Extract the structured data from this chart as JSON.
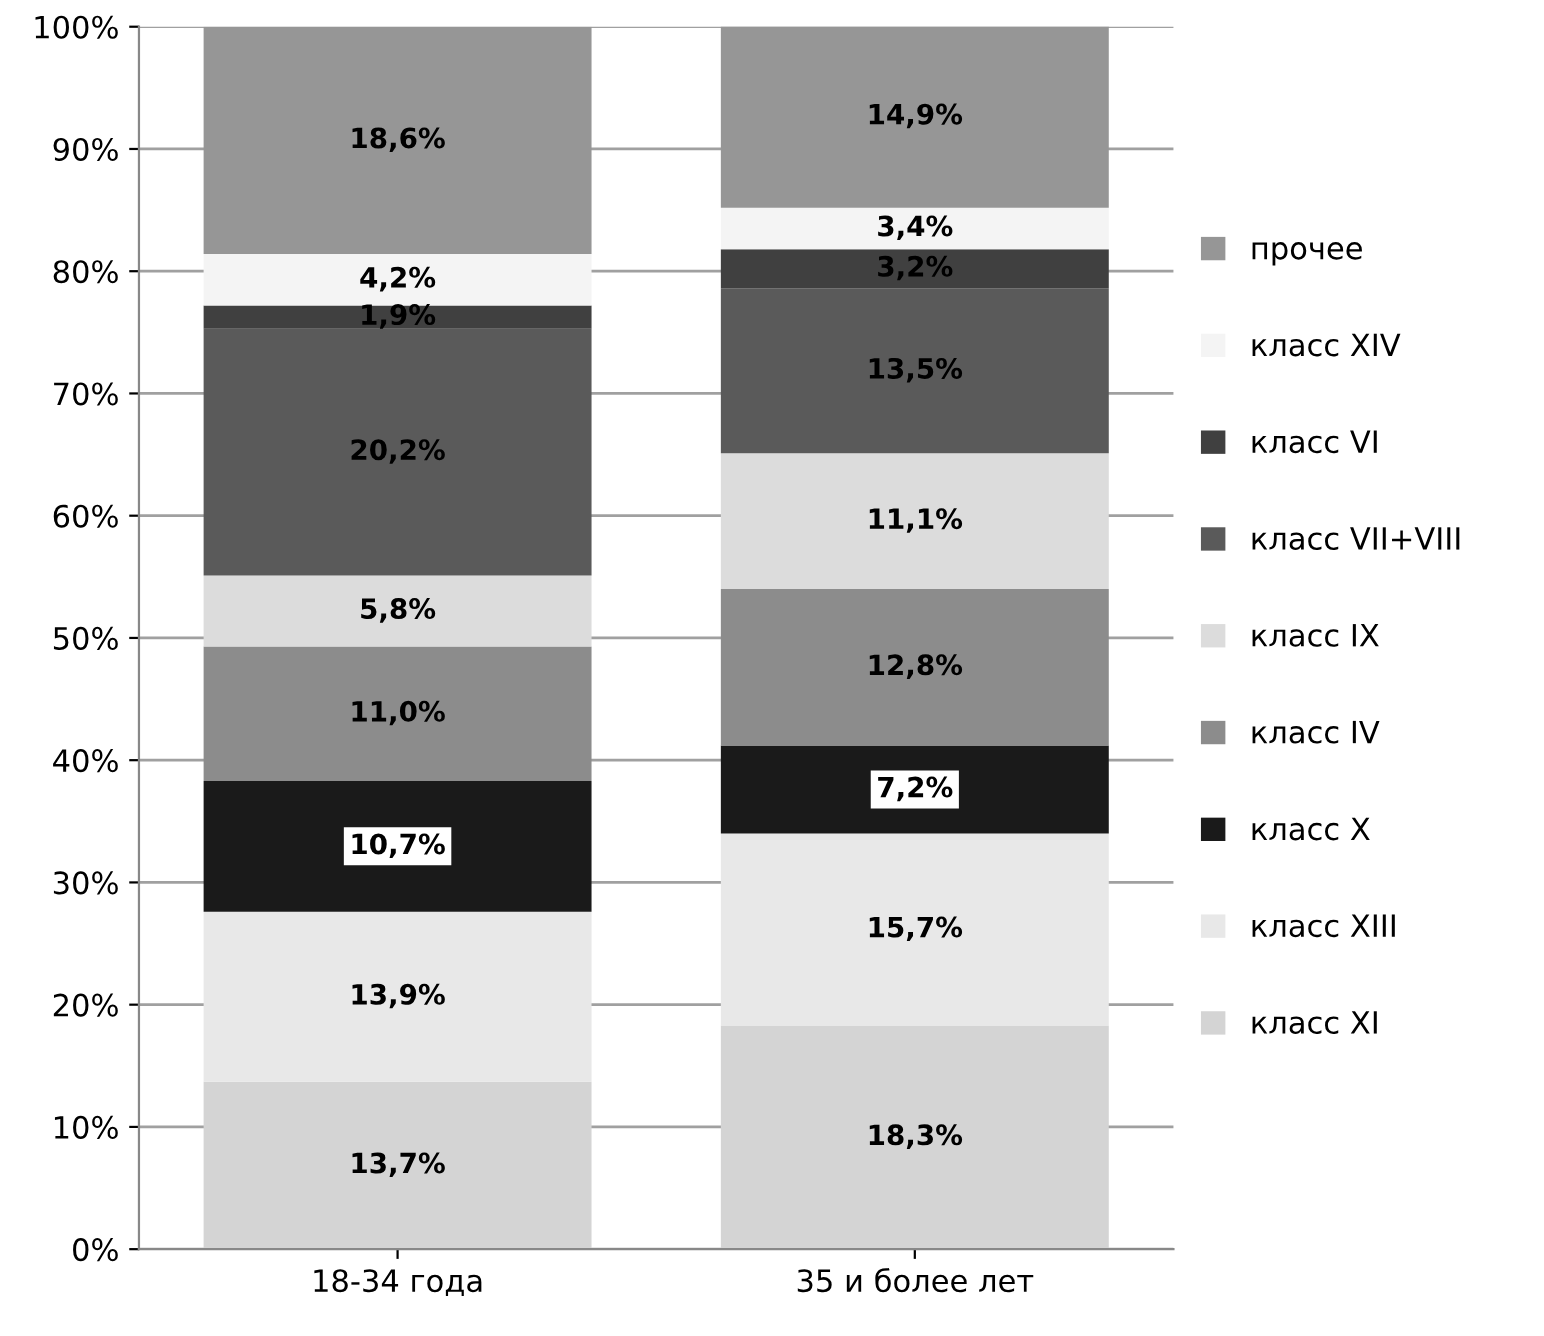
{
  "chart_data": {
    "type": "bar",
    "stacked": true,
    "categories": [
      "18-34 года",
      "35 и более лет"
    ],
    "ylim": [
      0,
      100
    ],
    "yticks": [
      {
        "value": 0,
        "label": "0%"
      },
      {
        "value": 10,
        "label": "10%"
      },
      {
        "value": 20,
        "label": "20%"
      },
      {
        "value": 30,
        "label": "30%"
      },
      {
        "value": 40,
        "label": "40%"
      },
      {
        "value": 50,
        "label": "50%"
      },
      {
        "value": 60,
        "label": "60%"
      },
      {
        "value": 70,
        "label": "70%"
      },
      {
        "value": 80,
        "label": "80%"
      },
      {
        "value": 90,
        "label": "90%"
      },
      {
        "value": 100,
        "label": "100%"
      }
    ],
    "grid": "y",
    "legend": "right",
    "series": [
      {
        "name": "класс XI",
        "color": "#d4d4d4",
        "values": [
          13.7,
          18.3
        ],
        "value_labels": [
          "13,7%",
          "18,3%"
        ]
      },
      {
        "name": "класс XIII",
        "color": "#e8e8e8",
        "values": [
          13.9,
          15.7
        ],
        "value_labels": [
          "13,9%",
          "15,7%"
        ]
      },
      {
        "name": "класс X",
        "color": "#1a1a1a",
        "values": [
          10.7,
          7.2
        ],
        "value_labels": [
          "10,7%",
          "7,2%"
        ]
      },
      {
        "name": "класс IV",
        "color": "#8c8c8c",
        "values": [
          11.0,
          12.8
        ],
        "value_labels": [
          "11,0%",
          "12,8%"
        ]
      },
      {
        "name": "класс IX",
        "color": "#dcdcdc",
        "values": [
          5.8,
          11.1
        ],
        "value_labels": [
          "5,8%",
          "11,1%"
        ]
      },
      {
        "name": "класс VII+VIII",
        "color": "#5a5a5a",
        "values": [
          20.2,
          13.5
        ],
        "value_labels": [
          "20,2%",
          "13,5%"
        ]
      },
      {
        "name": "класс VI",
        "color": "#404040",
        "values": [
          1.9,
          3.2
        ],
        "value_labels": [
          "1,9%",
          "3,2%"
        ]
      },
      {
        "name": "класс XIV",
        "color": "#f4f4f4",
        "values": [
          4.2,
          3.4
        ],
        "value_labels": [
          "4,2%",
          "3,4%"
        ]
      },
      {
        "name": "прочее",
        "color": "#969696",
        "values": [
          18.6,
          14.9
        ],
        "value_labels": [
          "18,6%",
          "14,9%"
        ]
      }
    ]
  }
}
